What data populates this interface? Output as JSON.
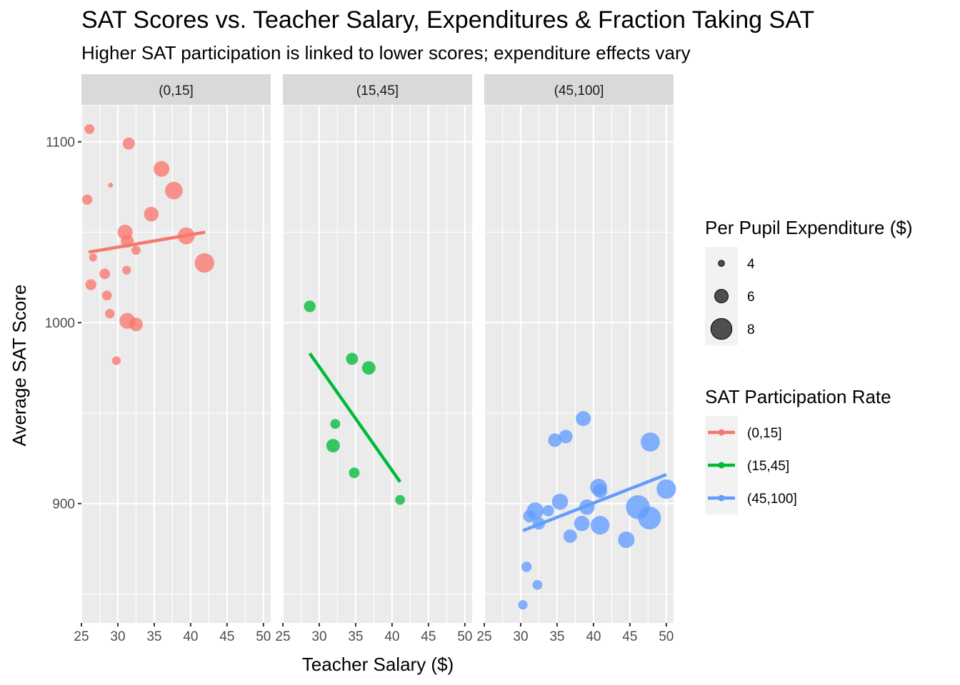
{
  "chart_data": {
    "type": "scatter",
    "title": "SAT Scores vs. Teacher Salary, Expenditures & Fraction Taking SAT",
    "subtitle": "Higher SAT participation is linked to lower scores; expenditure effects vary",
    "xlabel": "Teacher Salary ($)",
    "ylabel": "Average SAT Score",
    "xlim": [
      25,
      51
    ],
    "ylim": [
      834,
      1120
    ],
    "x_ticks": [
      25,
      30,
      35,
      40,
      45,
      50
    ],
    "x_tick_labels": [
      "25",
      "30",
      "35",
      "40",
      "45",
      "50"
    ],
    "y_ticks": [
      900,
      1000,
      1100
    ],
    "y_tick_labels": [
      "900",
      "1000",
      "1100"
    ],
    "grid": true,
    "legend_position": "right",
    "size_legend": {
      "title": "Per Pupil Expenditure ($)",
      "entries": [
        {
          "label": "4",
          "value": 4
        },
        {
          "label": "6",
          "value": 6
        },
        {
          "label": "8",
          "value": 8
        }
      ]
    },
    "color_legend": {
      "title": "SAT Participation Rate",
      "entries": [
        {
          "label": "(0,15]",
          "color": "#F8766D"
        },
        {
          "label": "(15,45]",
          "color": "#00BA38"
        },
        {
          "label": "(45,100]",
          "color": "#619CFF"
        }
      ]
    },
    "panels": [
      {
        "label": "(0,15]",
        "color": "#F8766D",
        "points": [
          {
            "x": 26.1,
            "y": 1107,
            "size": 5.0
          },
          {
            "x": 31.5,
            "y": 1099,
            "size": 5.6
          },
          {
            "x": 29.0,
            "y": 1076,
            "size": 3.7
          },
          {
            "x": 36.0,
            "y": 1085,
            "size": 6.6
          },
          {
            "x": 37.7,
            "y": 1073,
            "size": 7.1
          },
          {
            "x": 25.8,
            "y": 1068,
            "size": 5.1
          },
          {
            "x": 34.6,
            "y": 1060,
            "size": 6.3
          },
          {
            "x": 31.0,
            "y": 1050,
            "size": 6.4
          },
          {
            "x": 31.3,
            "y": 1045,
            "size": 5.8
          },
          {
            "x": 32.5,
            "y": 1040,
            "size": 4.8
          },
          {
            "x": 39.4,
            "y": 1048,
            "size": 6.9
          },
          {
            "x": 26.6,
            "y": 1036,
            "size": 4.5
          },
          {
            "x": 41.9,
            "y": 1033,
            "size": 7.6
          },
          {
            "x": 31.2,
            "y": 1029,
            "size": 4.7
          },
          {
            "x": 28.2,
            "y": 1027,
            "size": 5.2
          },
          {
            "x": 26.3,
            "y": 1021,
            "size": 5.3
          },
          {
            "x": 28.5,
            "y": 1015,
            "size": 5.0
          },
          {
            "x": 28.9,
            "y": 1005,
            "size": 4.9
          },
          {
            "x": 31.3,
            "y": 1001,
            "size": 6.6
          },
          {
            "x": 32.5,
            "y": 999,
            "size": 6.0
          },
          {
            "x": 29.8,
            "y": 979,
            "size": 4.7
          }
        ],
        "fit": {
          "x": [
            26.0,
            42.0
          ],
          "y": [
            1039,
            1050
          ]
        }
      },
      {
        "label": "(15,45]",
        "color": "#00BA38",
        "points": [
          {
            "x": 28.7,
            "y": 1009,
            "size": 5.5
          },
          {
            "x": 34.5,
            "y": 980,
            "size": 5.6
          },
          {
            "x": 36.8,
            "y": 975,
            "size": 6.0
          },
          {
            "x": 32.2,
            "y": 944,
            "size": 5.0
          },
          {
            "x": 31.9,
            "y": 932,
            "size": 6.0
          },
          {
            "x": 34.8,
            "y": 917,
            "size": 5.2
          },
          {
            "x": 41.1,
            "y": 902,
            "size": 5.0
          }
        ],
        "fit": {
          "x": [
            28.7,
            41.1
          ],
          "y": [
            983,
            912
          ]
        }
      },
      {
        "label": "(45,100]",
        "color": "#619CFF",
        "points": [
          {
            "x": 38.6,
            "y": 947,
            "size": 6.4
          },
          {
            "x": 36.2,
            "y": 937,
            "size": 6.0
          },
          {
            "x": 34.7,
            "y": 935,
            "size": 6.0
          },
          {
            "x": 47.8,
            "y": 934,
            "size": 7.5
          },
          {
            "x": 50.0,
            "y": 908,
            "size": 7.6
          },
          {
            "x": 40.7,
            "y": 909,
            "size": 6.9
          },
          {
            "x": 40.9,
            "y": 907,
            "size": 6.2
          },
          {
            "x": 35.4,
            "y": 901,
            "size": 6.7
          },
          {
            "x": 39.1,
            "y": 898,
            "size": 6.5
          },
          {
            "x": 46.1,
            "y": 898,
            "size": 8.8
          },
          {
            "x": 32.0,
            "y": 896,
            "size": 6.9
          },
          {
            "x": 33.8,
            "y": 896,
            "size": 5.4
          },
          {
            "x": 31.2,
            "y": 893,
            "size": 5.7
          },
          {
            "x": 47.7,
            "y": 892,
            "size": 8.5
          },
          {
            "x": 32.5,
            "y": 889,
            "size": 5.7
          },
          {
            "x": 38.4,
            "y": 889,
            "size": 6.5
          },
          {
            "x": 40.9,
            "y": 888,
            "size": 7.4
          },
          {
            "x": 36.8,
            "y": 882,
            "size": 6.0
          },
          {
            "x": 44.5,
            "y": 880,
            "size": 6.8
          },
          {
            "x": 30.8,
            "y": 865,
            "size": 5.1
          },
          {
            "x": 32.3,
            "y": 855,
            "size": 5.0
          },
          {
            "x": 30.3,
            "y": 844,
            "size": 4.9
          }
        ],
        "fit": {
          "x": [
            30.3,
            50.0
          ],
          "y": [
            885,
            916
          ]
        }
      }
    ]
  }
}
